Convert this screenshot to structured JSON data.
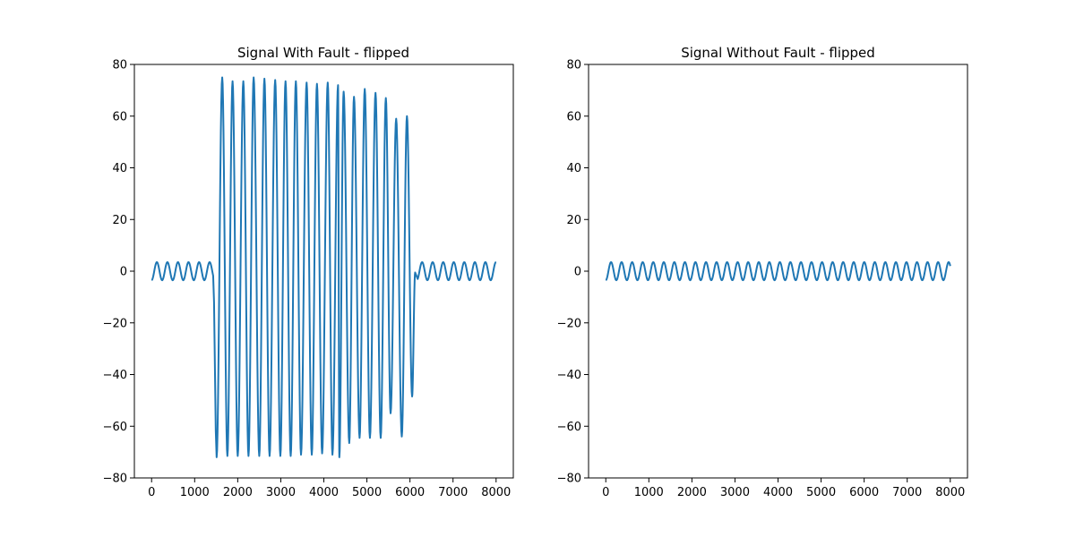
{
  "chart_data": [
    {
      "type": "line",
      "title": "Signal With Fault - flipped",
      "xlabel": "",
      "ylabel": "",
      "xlim": [
        -400,
        8400
      ],
      "ylim": [
        -80,
        80
      ],
      "xticks": [
        0,
        1000,
        2000,
        3000,
        4000,
        5000,
        6000,
        7000,
        8000
      ],
      "yticks": [
        -80,
        -60,
        -40,
        -20,
        0,
        20,
        40,
        60,
        80
      ],
      "grid": false,
      "legend": "none",
      "color": "#1f77b4",
      "x_range": [
        0,
        8000
      ],
      "segments": [
        {
          "from": 0,
          "to": 1430,
          "kind": "sine",
          "amplitude": 3.5,
          "period": 245,
          "phase_deg": -90
        },
        {
          "kind": "fault",
          "peaks": [
            [
              1510,
              -72
            ],
            [
              1640,
              75
            ],
            [
              1760,
              -71.5
            ],
            [
              1880,
              73.5
            ],
            [
              2000,
              -71.5
            ],
            [
              2130,
              73.5
            ],
            [
              2250,
              -71.5
            ],
            [
              2370,
              75
            ],
            [
              2500,
              -71.5
            ],
            [
              2620,
              74.5
            ],
            [
              2740,
              -71.5
            ],
            [
              2870,
              74
            ],
            [
              2990,
              -71.5
            ],
            [
              3110,
              73.5
            ],
            [
              3230,
              -71.5
            ],
            [
              3350,
              73.5
            ],
            [
              3470,
              -71
            ],
            [
              3600,
              73
            ],
            [
              3720,
              -71
            ],
            [
              3840,
              72.5
            ],
            [
              3960,
              -70.5
            ],
            [
              4090,
              73
            ],
            [
              4200,
              -71
            ],
            [
              4330,
              72
            ],
            [
              4360,
              -72
            ],
            [
              4460,
              69.5
            ],
            [
              4590,
              -66.5
            ],
            [
              4700,
              67.5
            ],
            [
              4830,
              -64.5
            ],
            [
              4950,
              70.5
            ],
            [
              5070,
              -64.5
            ],
            [
              5200,
              69
            ],
            [
              5320,
              -64.5
            ],
            [
              5440,
              67
            ],
            [
              5550,
              -55
            ],
            [
              5680,
              59
            ],
            [
              5810,
              -64
            ],
            [
              5930,
              60
            ],
            [
              6050,
              -48.5
            ],
            [
              6120,
              -0.5
            ]
          ]
        },
        {
          "from": 6180,
          "to": 8000,
          "kind": "sine",
          "amplitude": 3.5,
          "period": 245,
          "phase_deg": -60
        }
      ]
    },
    {
      "type": "line",
      "title": "Signal Without Fault - flipped",
      "xlabel": "",
      "ylabel": "",
      "xlim": [
        -400,
        8400
      ],
      "ylim": [
        -80,
        80
      ],
      "xticks": [
        0,
        1000,
        2000,
        3000,
        4000,
        5000,
        6000,
        7000,
        8000
      ],
      "yticks": [
        -80,
        -60,
        -40,
        -20,
        0,
        20,
        40,
        60,
        80
      ],
      "grid": false,
      "legend": "none",
      "color": "#1f77b4",
      "x_range": [
        0,
        8000
      ],
      "segments": [
        {
          "from": 0,
          "to": 8000,
          "kind": "sine",
          "amplitude": 3.5,
          "period": 245,
          "phase_deg": -90
        }
      ]
    }
  ]
}
